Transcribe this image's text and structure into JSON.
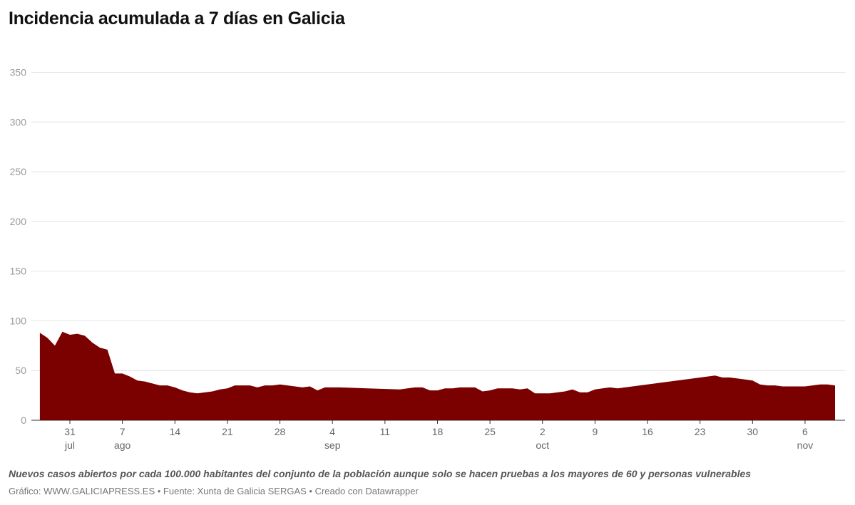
{
  "chart_data": {
    "type": "area",
    "title": "Incidencia acumulada a 7 días en Galicia",
    "xlabel": "",
    "ylabel": "",
    "ylim": [
      0,
      350
    ],
    "yticks": [
      0,
      50,
      100,
      150,
      200,
      250,
      300,
      350
    ],
    "grid": true,
    "legend": "none",
    "color": "#7b0000",
    "x_ticks": [
      {
        "date": "2020-07-31",
        "label": "31",
        "month": "jul"
      },
      {
        "date": "2020-08-07",
        "label": "7",
        "month": "ago"
      },
      {
        "date": "2020-08-14",
        "label": "14",
        "month": ""
      },
      {
        "date": "2020-08-21",
        "label": "21",
        "month": ""
      },
      {
        "date": "2020-08-28",
        "label": "28",
        "month": ""
      },
      {
        "date": "2020-09-04",
        "label": "4",
        "month": "sep"
      },
      {
        "date": "2020-09-11",
        "label": "11",
        "month": ""
      },
      {
        "date": "2020-09-18",
        "label": "18",
        "month": ""
      },
      {
        "date": "2020-09-25",
        "label": "25",
        "month": ""
      },
      {
        "date": "2020-10-02",
        "label": "2",
        "month": "oct"
      },
      {
        "date": "2020-10-09",
        "label": "9",
        "month": ""
      },
      {
        "date": "2020-10-16",
        "label": "16",
        "month": ""
      },
      {
        "date": "2020-10-23",
        "label": "23",
        "month": ""
      },
      {
        "date": "2020-10-30",
        "label": "30",
        "month": ""
      },
      {
        "date": "2020-11-06",
        "label": "6",
        "month": "nov"
      }
    ],
    "series": [
      {
        "values": [
          [
            "2020-07-27",
            88
          ],
          [
            "2020-07-28",
            83
          ],
          [
            "2020-07-29",
            75
          ],
          [
            "2020-07-30",
            89
          ],
          [
            "2020-07-31",
            86
          ],
          [
            "2020-08-01",
            87
          ],
          [
            "2020-08-02",
            85
          ],
          [
            "2020-08-03",
            78
          ],
          [
            "2020-08-04",
            73
          ],
          [
            "2020-08-05",
            71
          ],
          [
            "2020-08-06",
            47
          ],
          [
            "2020-08-07",
            47
          ],
          [
            "2020-08-08",
            44
          ],
          [
            "2020-08-09",
            40
          ],
          [
            "2020-08-10",
            39
          ],
          [
            "2020-08-11",
            37
          ],
          [
            "2020-08-12",
            35
          ],
          [
            "2020-08-13",
            35
          ],
          [
            "2020-08-14",
            33
          ],
          [
            "2020-08-15",
            30
          ],
          [
            "2020-08-16",
            28
          ],
          [
            "2020-08-17",
            27
          ],
          [
            "2020-08-18",
            28
          ],
          [
            "2020-08-19",
            29
          ],
          [
            "2020-08-20",
            31
          ],
          [
            "2020-08-21",
            32
          ],
          [
            "2020-08-22",
            35
          ],
          [
            "2020-08-23",
            35
          ],
          [
            "2020-08-24",
            35
          ],
          [
            "2020-08-25",
            33
          ],
          [
            "2020-08-26",
            35
          ],
          [
            "2020-08-27",
            35
          ],
          [
            "2020-08-28",
            36
          ],
          [
            "2020-08-29",
            35
          ],
          [
            "2020-08-30",
            34
          ],
          [
            "2020-08-31",
            33
          ],
          [
            "2020-09-01",
            34
          ],
          [
            "2020-09-02",
            30
          ],
          [
            "2020-09-03",
            33
          ],
          [
            "2020-09-04",
            33
          ],
          [
            "2020-09-05",
            33
          ],
          [
            "2020-09-13",
            31
          ],
          [
            "2020-09-14",
            32
          ],
          [
            "2020-09-15",
            33
          ],
          [
            "2020-09-16",
            33
          ],
          [
            "2020-09-17",
            30
          ],
          [
            "2020-09-18",
            30
          ],
          [
            "2020-09-19",
            32
          ],
          [
            "2020-09-20",
            32
          ],
          [
            "2020-09-21",
            33
          ],
          [
            "2020-09-22",
            33
          ],
          [
            "2020-09-23",
            33
          ],
          [
            "2020-09-24",
            29
          ],
          [
            "2020-09-25",
            30
          ],
          [
            "2020-09-26",
            32
          ],
          [
            "2020-09-27",
            32
          ],
          [
            "2020-09-28",
            32
          ],
          [
            "2020-09-29",
            31
          ],
          [
            "2020-09-30",
            32
          ],
          [
            "2020-10-01",
            27
          ],
          [
            "2020-10-02",
            27
          ],
          [
            "2020-10-03",
            27
          ],
          [
            "2020-10-04",
            28
          ],
          [
            "2020-10-05",
            29
          ],
          [
            "2020-10-06",
            31
          ],
          [
            "2020-10-07",
            28
          ],
          [
            "2020-10-08",
            28
          ],
          [
            "2020-10-09",
            31
          ],
          [
            "2020-10-10",
            32
          ],
          [
            "2020-10-11",
            33
          ],
          [
            "2020-10-12",
            32
          ],
          [
            "2020-10-25",
            45
          ],
          [
            "2020-10-26",
            43
          ],
          [
            "2020-10-27",
            43
          ],
          [
            "2020-10-28",
            42
          ],
          [
            "2020-10-29",
            41
          ],
          [
            "2020-10-30",
            40
          ],
          [
            "2020-10-31",
            36
          ],
          [
            "2020-11-01",
            35
          ],
          [
            "2020-11-02",
            35
          ],
          [
            "2020-11-03",
            34
          ],
          [
            "2020-11-04",
            34
          ],
          [
            "2020-11-05",
            34
          ],
          [
            "2020-11-06",
            34
          ],
          [
            "2020-11-07",
            35
          ],
          [
            "2020-11-08",
            36
          ],
          [
            "2020-11-09",
            36
          ],
          [
            "2020-11-10",
            35
          ]
        ]
      }
    ]
  },
  "note": "Nuevos casos abiertos por cada 100.000 habitantes del conjunto de la población aunque solo se hacen pruebas a los mayores de 60 y personas vulnerables",
  "footer": "Gráfico: WWW.GALICIAPRESS.ES • Fuente: Xunta de Galicia SERGAS • Creado con Datawrapper"
}
